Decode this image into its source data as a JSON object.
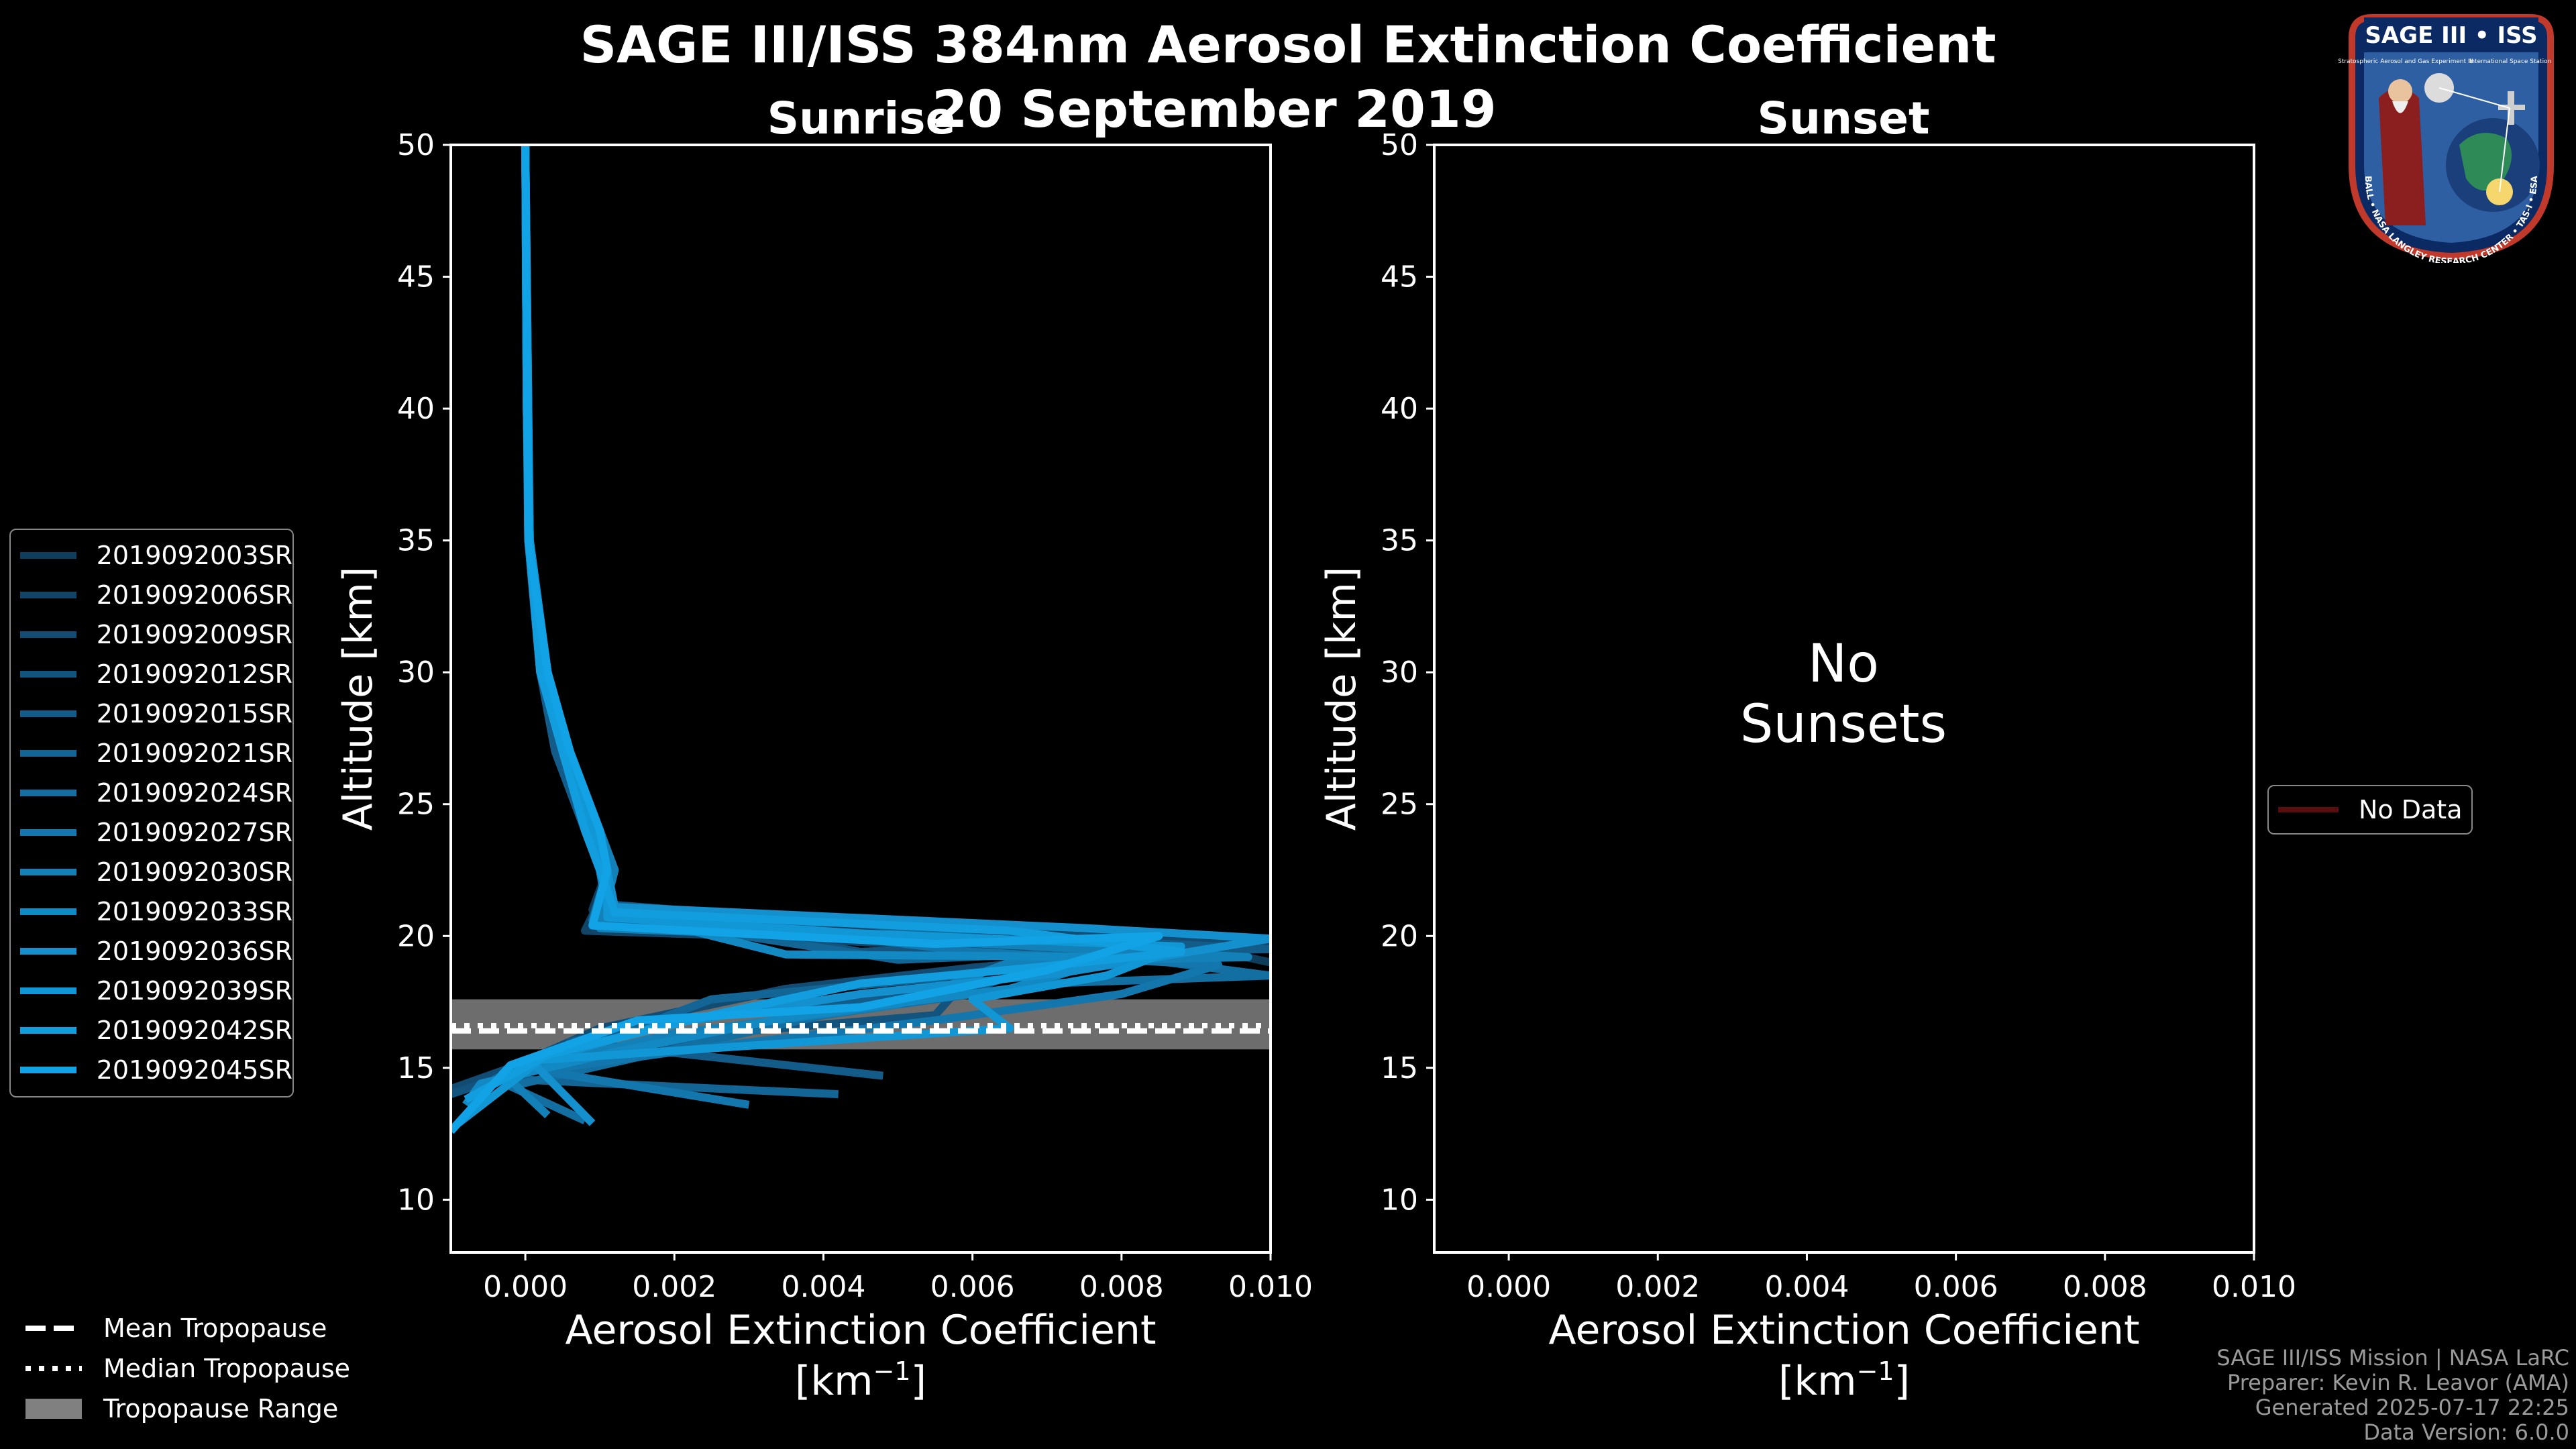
{
  "title": {
    "line1": "SAGE III/ISS 384nm Aerosol Extinction Coefficient",
    "line2": "20 September 2019"
  },
  "panels": {
    "sunrise": {
      "title": "Sunrise"
    },
    "sunset": {
      "title": "Sunset",
      "no_data_text_1": "No",
      "no_data_text_2": "Sunsets",
      "legend_label": "No Data"
    }
  },
  "chart_data": [
    {
      "type": "line",
      "title": "Sunrise",
      "xlabel": "Aerosol Extinction Coefficient",
      "xlabel_unit": "[km",
      "xlabel_unit_exp": "−1",
      "xlabel_unit_close": "]",
      "ylabel": "Altitude [km]",
      "xlim": [
        -0.001,
        0.01
      ],
      "ylim": [
        8,
        50
      ],
      "xticks": [
        0.0,
        0.002,
        0.004,
        0.006,
        0.008,
        0.01
      ],
      "xtick_labels": [
        "0.000",
        "0.002",
        "0.004",
        "0.006",
        "0.008",
        "0.010"
      ],
      "yticks": [
        10,
        15,
        20,
        25,
        30,
        35,
        40,
        45,
        50
      ],
      "ytick_labels": [
        "10",
        "15",
        "20",
        "25",
        "30",
        "35",
        "40",
        "45",
        "50"
      ],
      "tropopause": {
        "mean": 16.4,
        "median": 16.6,
        "range": [
          15.7,
          17.6
        ]
      },
      "series": [
        {
          "name": "2019092003SR",
          "color": "#0f3d5c",
          "points": [
            [
              0.0,
              50
            ],
            [
              3e-05,
              40
            ],
            [
              5e-05,
              35
            ],
            [
              0.0003,
              30
            ],
            [
              0.0005,
              27
            ],
            [
              0.0009,
              24
            ],
            [
              0.0011,
              22.5
            ],
            [
              0.0009,
              21
            ],
            [
              0.004,
              20.4
            ],
            [
              0.0075,
              19.9
            ],
            [
              0.0095,
              19.3
            ],
            [
              0.01,
              19.0
            ]
          ]
        },
        {
          "name": "2019092006SR",
          "color": "#114466",
          "points": [
            [
              0.0,
              50
            ],
            [
              2e-05,
              40
            ],
            [
              6e-05,
              35
            ],
            [
              0.0003,
              30
            ],
            [
              0.0006,
              27
            ],
            [
              0.001,
              24
            ],
            [
              0.0012,
              22.5
            ],
            [
              0.0008,
              20.2
            ],
            [
              0.003,
              20.0
            ],
            [
              0.007,
              19.4
            ],
            [
              0.01,
              19.7
            ]
          ]
        },
        {
          "name": "2019092009SR",
          "color": "#124c72",
          "points": [
            [
              0.0,
              50
            ],
            [
              4e-05,
              40
            ],
            [
              4e-05,
              35
            ],
            [
              0.0002,
              30
            ],
            [
              0.0005,
              27
            ],
            [
              0.0008,
              24
            ],
            [
              0.001,
              22.5
            ],
            [
              0.0011,
              21
            ],
            [
              0.006,
              20.2
            ],
            [
              0.0098,
              19.8
            ],
            [
              0.006,
              18.8
            ],
            [
              0.0035,
              18.0
            ],
            [
              0.001,
              16.5
            ],
            [
              -0.0002,
              15.0
            ],
            [
              -0.001,
              14.2
            ]
          ]
        },
        {
          "name": "2019092012SR",
          "color": "#13547e",
          "points": [
            [
              0.0,
              50
            ],
            [
              3e-05,
              40
            ],
            [
              5e-05,
              35
            ],
            [
              0.0003,
              30
            ],
            [
              0.0006,
              27
            ],
            [
              0.0009,
              24
            ],
            [
              0.0011,
              22.5
            ],
            [
              0.0012,
              21
            ],
            [
              0.0045,
              19.4
            ],
            [
              0.008,
              19.8
            ],
            [
              0.006,
              18.6
            ],
            [
              0.0055,
              17.0
            ],
            [
              0.003,
              16.4
            ],
            [
              0.0005,
              15.4
            ],
            [
              -0.001,
              14.0
            ]
          ]
        },
        {
          "name": "2019092015SR",
          "color": "#135c8a",
          "points": [
            [
              0.0,
              50
            ],
            [
              2e-05,
              40
            ],
            [
              6e-05,
              35
            ],
            [
              0.0002,
              30
            ],
            [
              0.0004,
              27
            ],
            [
              0.0008,
              24
            ],
            [
              0.001,
              22.5
            ],
            [
              0.0011,
              21.2
            ],
            [
              0.0065,
              20.0
            ],
            [
              0.01,
              19.5
            ],
            [
              0.0075,
              19.4
            ],
            [
              0.006,
              18.0
            ],
            [
              0.003,
              17.2
            ],
            [
              0.0006,
              16.0
            ],
            [
              0.0048,
              14.7
            ]
          ]
        },
        {
          "name": "2019092021SR",
          "color": "#136595",
          "points": [
            [
              0.0,
              50
            ],
            [
              3e-05,
              40
            ],
            [
              4e-05,
              35
            ],
            [
              0.0003,
              30
            ],
            [
              0.0005,
              27
            ],
            [
              0.0009,
              24
            ],
            [
              0.001,
              22.5
            ],
            [
              0.0011,
              20.8
            ],
            [
              0.005,
              19.1
            ],
            [
              0.0085,
              19.5
            ],
            [
              0.0055,
              18.4
            ],
            [
              0.0025,
              17.6
            ],
            [
              0.001,
              16.0
            ],
            [
              -0.0004,
              14.6
            ],
            [
              0.0042,
              14.0
            ]
          ]
        },
        {
          "name": "2019092024SR",
          "color": "#136ea1",
          "points": [
            [
              0.0,
              50
            ],
            [
              2e-05,
              40
            ],
            [
              5e-05,
              35
            ],
            [
              0.0003,
              30
            ],
            [
              0.0006,
              27
            ],
            [
              0.0009,
              24
            ],
            [
              0.0011,
              22.5
            ],
            [
              0.0009,
              20.6
            ],
            [
              0.0045,
              20.5
            ],
            [
              0.01,
              18.5
            ],
            [
              0.007,
              18.2
            ],
            [
              0.004,
              17.0
            ],
            [
              0.0015,
              15.4
            ],
            [
              -0.0002,
              14.3
            ],
            [
              0.0008,
              13.0
            ]
          ]
        },
        {
          "name": "2019092027SR",
          "color": "#1377ad",
          "points": [
            [
              0.0,
              50
            ],
            [
              4e-05,
              40
            ],
            [
              5e-05,
              35
            ],
            [
              0.0002,
              30
            ],
            [
              0.0005,
              27
            ],
            [
              0.0008,
              24
            ],
            [
              0.0011,
              22.5
            ],
            [
              0.0012,
              21.0
            ],
            [
              0.006,
              19.4
            ],
            [
              0.0093,
              18.9
            ],
            [
              0.008,
              17.8
            ],
            [
              0.0055,
              16.8
            ],
            [
              0.0025,
              15.8
            ],
            [
              0.0002,
              14.9
            ],
            [
              0.003,
              13.6
            ]
          ]
        },
        {
          "name": "2019092030SR",
          "color": "#1380b8",
          "points": [
            [
              0.0,
              50
            ],
            [
              3e-05,
              40
            ],
            [
              6e-05,
              35
            ],
            [
              0.0003,
              30
            ],
            [
              0.0006,
              27
            ],
            [
              0.001,
              24
            ],
            [
              0.0012,
              22.5
            ],
            [
              0.001,
              20.3
            ],
            [
              0.0055,
              19.8
            ],
            [
              0.0097,
              19.2
            ],
            [
              0.0065,
              19.0
            ],
            [
              0.005,
              17.4
            ],
            [
              0.002,
              16.3
            ],
            [
              -0.0003,
              14.8
            ],
            [
              0.0003,
              13.2
            ]
          ]
        },
        {
          "name": "2019092033SR",
          "color": "#1389c3",
          "points": [
            [
              0.0,
              50
            ],
            [
              2e-05,
              40
            ],
            [
              4e-05,
              35
            ],
            [
              0.0002,
              30
            ],
            [
              0.0005,
              27
            ],
            [
              0.0009,
              24
            ],
            [
              0.001,
              22.5
            ],
            [
              0.0011,
              21.0
            ],
            [
              0.0035,
              19.3
            ],
            [
              0.008,
              19.2
            ],
            [
              0.0065,
              18.0
            ],
            [
              0.0035,
              16.9
            ],
            [
              0.0012,
              15.6
            ],
            [
              -0.0006,
              14.4
            ],
            [
              -0.0008,
              13.6
            ]
          ]
        },
        {
          "name": "2019092036SR",
          "color": "#1390cd",
          "points": [
            [
              0.0,
              50
            ],
            [
              3e-05,
              40
            ],
            [
              5e-05,
              35
            ],
            [
              0.0003,
              30
            ],
            [
              0.0005,
              27
            ],
            [
              0.0009,
              24
            ],
            [
              0.0011,
              22.5
            ],
            [
              0.0012,
              21.1
            ],
            [
              0.0075,
              20.3
            ],
            [
              0.01,
              19.9
            ],
            [
              0.0072,
              18.6
            ],
            [
              0.0045,
              17.8
            ],
            [
              0.0018,
              16.6
            ],
            [
              0.0001,
              15.2
            ],
            [
              0.0009,
              12.9
            ]
          ]
        },
        {
          "name": "2019092039SR",
          "color": "#1297d6",
          "points": [
            [
              0.0,
              50
            ],
            [
              4e-05,
              40
            ],
            [
              6e-05,
              35
            ],
            [
              0.0003,
              30
            ],
            [
              0.0006,
              27
            ],
            [
              0.0009,
              24
            ],
            [
              0.0011,
              22.5
            ],
            [
              0.0011,
              20.7
            ],
            [
              0.0045,
              20.1
            ],
            [
              0.0088,
              19.6
            ],
            [
              0.0078,
              18.5
            ],
            [
              0.006,
              17.6
            ],
            [
              0.0065,
              16.5
            ],
            [
              0.0028,
              15.8
            ],
            [
              0.0002,
              15.3
            ],
            [
              -0.0009,
              12.9
            ]
          ]
        },
        {
          "name": "2019092042SR",
          "color": "#129ede",
          "points": [
            [
              0.0,
              50
            ],
            [
              2e-05,
              40
            ],
            [
              5e-05,
              35
            ],
            [
              0.0002,
              30
            ],
            [
              0.0005,
              27
            ],
            [
              0.0008,
              24
            ],
            [
              0.001,
              22.5
            ],
            [
              0.0012,
              20.9
            ],
            [
              0.0065,
              20.2
            ],
            [
              0.0088,
              19.4
            ],
            [
              0.0068,
              18.8
            ],
            [
              0.0045,
              18.2
            ],
            [
              0.0025,
              17.0
            ],
            [
              0.0003,
              15.5
            ],
            [
              -0.0008,
              13.8
            ]
          ]
        },
        {
          "name": "2019092045SR",
          "color": "#11a3e6",
          "points": [
            [
              0.0,
              50
            ],
            [
              3e-05,
              40
            ],
            [
              4e-05,
              35
            ],
            [
              0.0003,
              30
            ],
            [
              0.0006,
              27
            ],
            [
              0.001,
              24
            ],
            [
              0.0011,
              22.5
            ],
            [
              0.0009,
              20.4
            ],
            [
              0.0055,
              19.7
            ],
            [
              0.0085,
              20.0
            ],
            [
              0.007,
              18.7
            ],
            [
              0.0045,
              17.3
            ],
            [
              0.0015,
              16.8
            ],
            [
              -0.0002,
              15.1
            ],
            [
              -0.001,
              12.6
            ]
          ]
        }
      ],
      "legend_tropopause": [
        "Mean Tropopause",
        "Median Tropopause",
        "Tropopause Range"
      ]
    },
    {
      "type": "line",
      "title": "Sunset",
      "xlabel": "Aerosol Extinction Coefficient",
      "xlabel_unit": "[km",
      "xlabel_unit_exp": "−1",
      "xlabel_unit_close": "]",
      "ylabel": "Altitude [km]",
      "xlim": [
        -0.001,
        0.01
      ],
      "ylim": [
        8,
        50
      ],
      "xticks": [
        0.0,
        0.002,
        0.004,
        0.006,
        0.008,
        0.01
      ],
      "xtick_labels": [
        "0.000",
        "0.002",
        "0.004",
        "0.006",
        "0.008",
        "0.010"
      ],
      "yticks": [
        10,
        15,
        20,
        25,
        30,
        35,
        40,
        45,
        50
      ],
      "ytick_labels": [
        "10",
        "15",
        "20",
        "25",
        "30",
        "35",
        "40",
        "45",
        "50"
      ],
      "series": []
    }
  ],
  "legend_tropopause": {
    "mean": "Mean Tropopause",
    "median": "Median Tropopause",
    "range": "Tropopause Range"
  },
  "credits": {
    "line1": "SAGE III/ISS Mission | NASA LaRC",
    "line2": "Preparer: Kevin R. Leavor (AMA)",
    "line3": "Generated 2025-07-17 22:25",
    "line4": "Data Version: 6.0.0"
  },
  "logo": {
    "top_text": "SAGE III • ISS",
    "ring_text": "BALL • NASA LANGLEY RESEARCH CENTER • TAS-I • ESA",
    "sub_left": "Stratospheric Aerosol and Gas Experiment III",
    "sub_right": "International Space Station"
  },
  "colors": {
    "background": "#000000",
    "axis": "#ffffff",
    "tropopause_range": "#808080",
    "no_data_line": "#5a0d0d"
  }
}
